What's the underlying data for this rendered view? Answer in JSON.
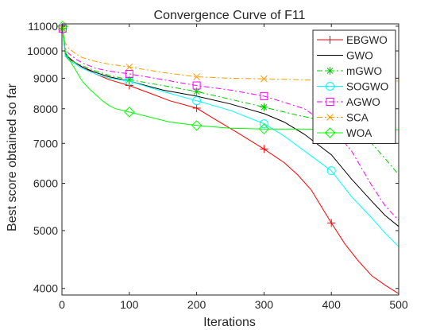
{
  "chart_data": {
    "type": "line",
    "title": "Convergence Curve of F11",
    "xlabel": "Iterations",
    "ylabel": "Best score obtained so far",
    "xlim": [
      0,
      500
    ],
    "ylim": [
      3900,
      11100
    ],
    "yscale": "log",
    "xticks": [
      0,
      100,
      200,
      300,
      400,
      500
    ],
    "yticks": [
      4000,
      5000,
      6000,
      7000,
      8000,
      9000,
      10000,
      11000
    ],
    "grid": false,
    "legend_position": "top-right",
    "series": [
      {
        "name": "EBGWO",
        "color": "#ff0000",
        "dash": "solid",
        "marker": "plus",
        "marker_x": [
          1,
          100,
          200,
          300,
          400
        ],
        "x": [
          1,
          5,
          10,
          20,
          30,
          50,
          70,
          100,
          130,
          160,
          200,
          230,
          260,
          300,
          330,
          350,
          370,
          400,
          420,
          440,
          460,
          480,
          500
        ],
        "y": [
          10900,
          9800,
          9700,
          9550,
          9400,
          9150,
          8950,
          8750,
          8500,
          8250,
          8020,
          7650,
          7300,
          6850,
          6500,
          6200,
          5850,
          5150,
          4750,
          4450,
          4200,
          4050,
          3920
        ]
      },
      {
        "name": "GWO",
        "color": "#000000",
        "dash": "solid",
        "marker": "none",
        "marker_x": [],
        "x": [
          1,
          5,
          10,
          20,
          30,
          50,
          70,
          100,
          150,
          200,
          250,
          300,
          330,
          360,
          400,
          430,
          460,
          480,
          500
        ],
        "y": [
          10900,
          9900,
          9750,
          9550,
          9400,
          9200,
          9050,
          8900,
          8600,
          8400,
          8150,
          7850,
          7600,
          7250,
          6700,
          6100,
          5600,
          5300,
          5080
        ]
      },
      {
        "name": "mGWO",
        "color": "#00cc00",
        "dash": "dashdot",
        "marker": "star",
        "marker_x": [
          1,
          100,
          200,
          300
        ],
        "x": [
          1,
          5,
          10,
          20,
          30,
          50,
          70,
          100,
          150,
          200,
          250,
          300,
          350,
          400,
          430,
          460,
          480,
          500
        ],
        "y": [
          10900,
          9850,
          9700,
          9550,
          9450,
          9250,
          9100,
          8950,
          8750,
          8550,
          8300,
          8050,
          7800,
          7600,
          7350,
          7000,
          6600,
          6200
        ]
      },
      {
        "name": "SOGWO",
        "color": "#00ffff",
        "dash": "solid",
        "marker": "circle",
        "marker_x": [
          1,
          100,
          200,
          300,
          400
        ],
        "x": [
          1,
          5,
          10,
          20,
          30,
          50,
          70,
          100,
          150,
          200,
          250,
          300,
          330,
          360,
          400,
          430,
          460,
          480,
          500
        ],
        "y": [
          10900,
          9800,
          9650,
          9500,
          9350,
          9150,
          9000,
          8900,
          8550,
          8250,
          7950,
          7550,
          7200,
          6800,
          6300,
          5700,
          5250,
          4950,
          4700
        ]
      },
      {
        "name": "AGWO",
        "color": "#ff00ff",
        "dash": "dashdot",
        "marker": "square",
        "marker_x": [
          1,
          100,
          200,
          300
        ],
        "x": [
          1,
          5,
          10,
          20,
          30,
          50,
          70,
          100,
          150,
          200,
          250,
          300,
          330,
          360,
          400,
          430,
          460,
          480,
          500
        ],
        "y": [
          10900,
          10100,
          9900,
          9700,
          9550,
          9350,
          9250,
          9150,
          8950,
          8750,
          8600,
          8400,
          8200,
          8000,
          7450,
          6800,
          5950,
          5500,
          5200
        ]
      },
      {
        "name": "SCA",
        "color": "#ff9900",
        "dash": "dashdot",
        "marker": "x",
        "marker_x": [
          1,
          100,
          200,
          300
        ],
        "x": [
          1,
          5,
          10,
          20,
          30,
          50,
          70,
          100,
          150,
          200,
          250,
          300,
          350,
          400,
          450,
          500
        ],
        "y": [
          10900,
          10300,
          10100,
          9900,
          9750,
          9600,
          9500,
          9400,
          9200,
          9050,
          9000,
          8980,
          8950,
          8920,
          8900,
          8900
        ]
      },
      {
        "name": "WOA",
        "color": "#00ff00",
        "dash": "solid",
        "marker": "diamond",
        "marker_x": [
          1,
          100,
          200,
          300
        ],
        "x": [
          1,
          5,
          10,
          20,
          30,
          40,
          50,
          60,
          70,
          80,
          100,
          130,
          160,
          200,
          250,
          300,
          350,
          400,
          450,
          500
        ],
        "y": [
          11000,
          10000,
          9700,
          9300,
          8900,
          8650,
          8450,
          8250,
          8100,
          8000,
          7900,
          7750,
          7600,
          7500,
          7420,
          7400,
          7400,
          7390,
          7390,
          7380
        ]
      }
    ]
  }
}
